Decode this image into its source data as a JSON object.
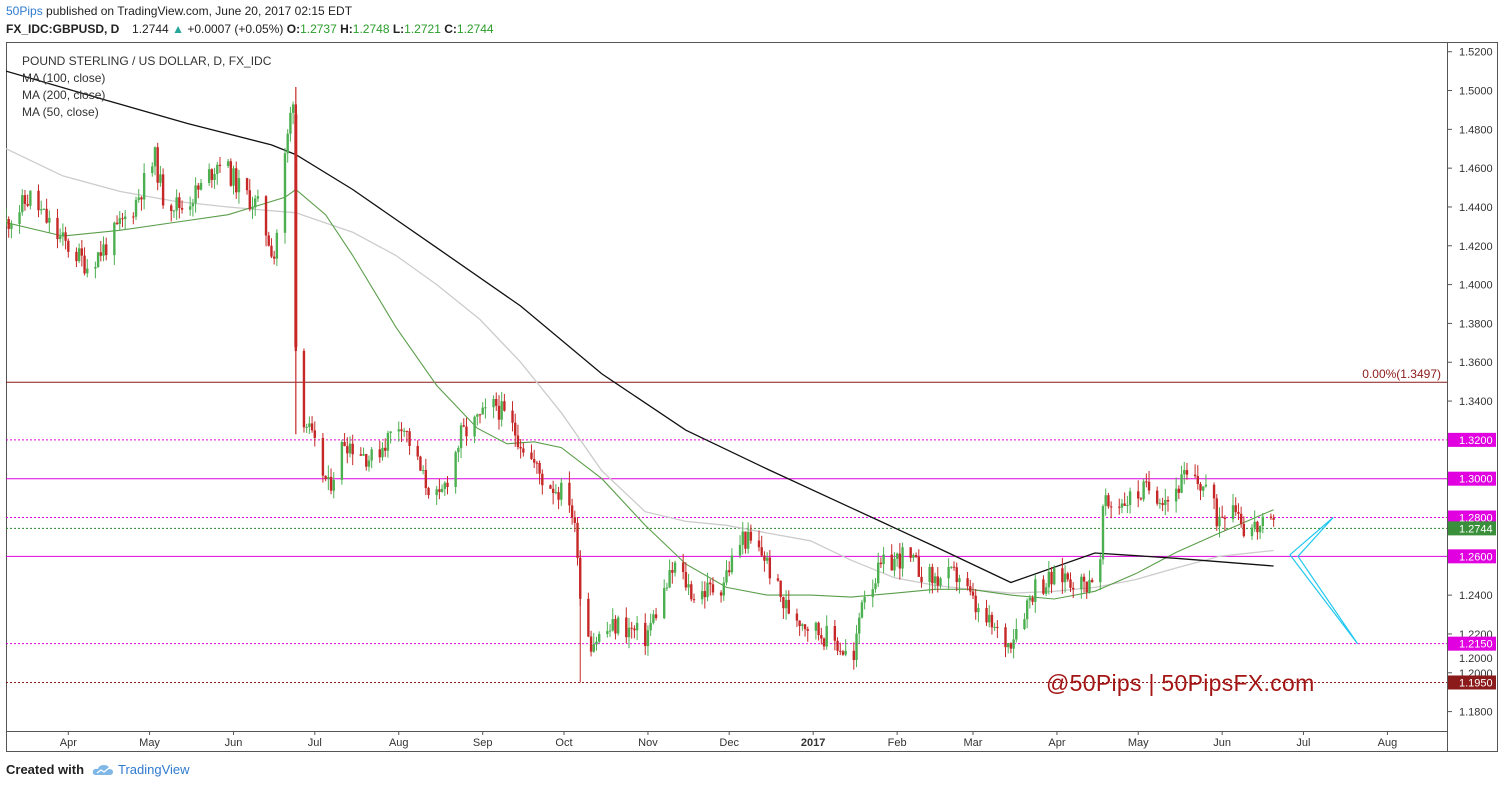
{
  "header": {
    "author": "50Pips",
    "published_text": "published on TradingView.com, June 20, 2017 02:15 EDT",
    "symbol": "FX_IDC:GBPUSD, D",
    "last": "1.2744",
    "change_arrow": "▲",
    "change": "+0.0007 (+0.05%)",
    "o_label": "O:",
    "o_value": "1.2737",
    "h_label": "H:",
    "h_value": "1.2748",
    "l_label": "L:",
    "l_value": "1.2721",
    "c_label": "C:",
    "c_value": "1.2744"
  },
  "legend": {
    "title": "POUND STERLING / US DOLLAR, D, FX_IDC",
    "ma100": "MA (100, close)",
    "ma200": "MA (200, close)",
    "ma50": "MA (50, close)"
  },
  "watermark": "@50Pips | 50PipsFX.com",
  "footer": {
    "created_with": "Created with",
    "brand": "TradingView"
  },
  "colors": {
    "up_candle": "#4caf50",
    "down_candle": "#c62828",
    "ma50": "#5a9e4a",
    "ma100": "#cccccc",
    "ma200": "#111111",
    "magenta": "#e000e0",
    "fib": "#8b1a1a",
    "projection": "#22c8f0"
  },
  "chart_data": {
    "type": "candlestick",
    "ylim": [
      1.17,
      1.525
    ],
    "y_ticks": [
      "1.5200",
      "1.5000",
      "1.4800",
      "1.4600",
      "1.4400",
      "1.4200",
      "1.4000",
      "1.3800",
      "1.3600",
      "1.3400",
      "1.3200",
      "1.3000",
      "1.2800",
      "1.2600",
      "1.2400",
      "1.2200",
      "1.2000",
      "1.1800"
    ],
    "x_labels": [
      {
        "date": "2016-04-01",
        "label": "Apr"
      },
      {
        "date": "2016-05-01",
        "label": "May"
      },
      {
        "date": "2016-06-01",
        "label": "Jun"
      },
      {
        "date": "2016-07-01",
        "label": "Jul"
      },
      {
        "date": "2016-08-01",
        "label": "Aug"
      },
      {
        "date": "2016-09-01",
        "label": "Sep"
      },
      {
        "date": "2016-10-01",
        "label": "Oct"
      },
      {
        "date": "2016-11-01",
        "label": "Nov"
      },
      {
        "date": "2016-12-01",
        "label": "Dec"
      },
      {
        "date": "2017-01-01",
        "label": "2017",
        "bold": true
      },
      {
        "date": "2017-02-01",
        "label": "Feb"
      },
      {
        "date": "2017-03-01",
        "label": "Mar"
      },
      {
        "date": "2017-04-01",
        "label": "Apr"
      },
      {
        "date": "2017-05-01",
        "label": "May"
      },
      {
        "date": "2017-06-01",
        "label": "Jun"
      },
      {
        "date": "2017-07-01",
        "label": "Jul"
      },
      {
        "date": "2017-08-01",
        "label": "Aug"
      }
    ],
    "x_range": [
      "2016-03-09",
      "2017-08-23"
    ],
    "price_path": [
      [
        "2016-03-09",
        1.432
      ],
      [
        "2016-03-18",
        1.445
      ],
      [
        "2016-03-28",
        1.425
      ],
      [
        "2016-04-08",
        1.41
      ],
      [
        "2016-04-15",
        1.42
      ],
      [
        "2016-04-25",
        1.44
      ],
      [
        "2016-05-03",
        1.465
      ],
      [
        "2016-05-06",
        1.445
      ],
      [
        "2016-05-13",
        1.44
      ],
      [
        "2016-05-20",
        1.45
      ],
      [
        "2016-05-27",
        1.465
      ],
      [
        "2016-06-03",
        1.45
      ],
      [
        "2016-06-10",
        1.44
      ],
      [
        "2016-06-16",
        1.415
      ],
      [
        "2016-06-20",
        1.465
      ],
      [
        "2016-06-23",
        1.498
      ],
      [
        "2016-06-24",
        1.367
      ],
      [
        "2016-06-27",
        1.332
      ],
      [
        "2016-07-06",
        1.295
      ],
      [
        "2016-07-12",
        1.32
      ],
      [
        "2016-07-22",
        1.31
      ],
      [
        "2016-08-02",
        1.33
      ],
      [
        "2016-08-10",
        1.3
      ],
      [
        "2016-08-16",
        1.288
      ],
      [
        "2016-08-24",
        1.322
      ],
      [
        "2016-09-06",
        1.338
      ],
      [
        "2016-09-14",
        1.322
      ],
      [
        "2016-09-23",
        1.3
      ],
      [
        "2016-10-03",
        1.29
      ],
      [
        "2016-10-06",
        1.265
      ],
      [
        "2016-10-07",
        1.24
      ],
      [
        "2016-10-11",
        1.216
      ],
      [
        "2016-10-21",
        1.225
      ],
      [
        "2016-10-31",
        1.218
      ],
      [
        "2016-11-11",
        1.255
      ],
      [
        "2016-11-18",
        1.24
      ],
      [
        "2016-11-28",
        1.245
      ],
      [
        "2016-12-06",
        1.27
      ],
      [
        "2016-12-14",
        1.26
      ],
      [
        "2016-12-21",
        1.235
      ],
      [
        "2016-12-30",
        1.225
      ],
      [
        "2017-01-10",
        1.215
      ],
      [
        "2017-01-16",
        1.205
      ],
      [
        "2017-01-19",
        1.24
      ],
      [
        "2017-01-27",
        1.255
      ],
      [
        "2017-02-03",
        1.26
      ],
      [
        "2017-02-14",
        1.248
      ],
      [
        "2017-02-24",
        1.25
      ],
      [
        "2017-03-03",
        1.23
      ],
      [
        "2017-03-14",
        1.215
      ],
      [
        "2017-03-24",
        1.245
      ],
      [
        "2017-04-04",
        1.25
      ],
      [
        "2017-04-11",
        1.245
      ],
      [
        "2017-04-17",
        1.255
      ],
      [
        "2017-04-18",
        1.285
      ],
      [
        "2017-04-28",
        1.29
      ],
      [
        "2017-05-05",
        1.295
      ],
      [
        "2017-05-12",
        1.29
      ],
      [
        "2017-05-18",
        1.3
      ],
      [
        "2017-05-26",
        1.296
      ],
      [
        "2017-05-30",
        1.28
      ],
      [
        "2017-06-05",
        1.29
      ],
      [
        "2017-06-08",
        1.28
      ],
      [
        "2017-06-09",
        1.275
      ],
      [
        "2017-06-14",
        1.275
      ],
      [
        "2017-06-20",
        1.2744
      ]
    ],
    "ma50": [
      [
        "2016-03-09",
        1.432
      ],
      [
        "2016-03-30",
        1.425
      ],
      [
        "2016-04-20",
        1.428
      ],
      [
        "2016-05-10",
        1.432
      ],
      [
        "2016-05-30",
        1.436
      ],
      [
        "2016-06-20",
        1.445
      ],
      [
        "2016-06-24",
        1.449
      ],
      [
        "2016-07-05",
        1.436
      ],
      [
        "2016-07-15",
        1.415
      ],
      [
        "2016-07-31",
        1.378
      ],
      [
        "2016-08-15",
        1.348
      ],
      [
        "2016-08-30",
        1.326
      ],
      [
        "2016-09-10",
        1.318
      ],
      [
        "2016-09-20",
        1.319
      ],
      [
        "2016-09-30",
        1.316
      ],
      [
        "2016-10-15",
        1.3
      ],
      [
        "2016-10-31",
        1.276
      ],
      [
        "2016-11-15",
        1.256
      ],
      [
        "2016-11-30",
        1.244
      ],
      [
        "2016-12-15",
        1.24
      ],
      [
        "2016-12-31",
        1.24
      ],
      [
        "2017-01-15",
        1.239
      ],
      [
        "2017-01-31",
        1.241
      ],
      [
        "2017-02-15",
        1.243
      ],
      [
        "2017-02-28",
        1.243
      ],
      [
        "2017-03-15",
        1.24
      ],
      [
        "2017-03-31",
        1.238
      ],
      [
        "2017-04-15",
        1.242
      ],
      [
        "2017-04-30",
        1.251
      ],
      [
        "2017-05-15",
        1.262
      ],
      [
        "2017-05-31",
        1.272
      ],
      [
        "2017-06-10",
        1.278
      ],
      [
        "2017-06-20",
        1.284
      ]
    ],
    "ma100": [
      [
        "2016-03-09",
        1.47
      ],
      [
        "2016-03-30",
        1.456
      ],
      [
        "2016-04-20",
        1.448
      ],
      [
        "2016-05-10",
        1.443
      ],
      [
        "2016-05-30",
        1.44
      ],
      [
        "2016-06-24",
        1.437
      ],
      [
        "2016-07-15",
        1.427
      ],
      [
        "2016-07-31",
        1.415
      ],
      [
        "2016-08-15",
        1.4
      ],
      [
        "2016-08-31",
        1.382
      ],
      [
        "2016-09-15",
        1.36
      ],
      [
        "2016-09-30",
        1.334
      ],
      [
        "2016-10-15",
        1.304
      ],
      [
        "2016-10-31",
        1.283
      ],
      [
        "2016-11-15",
        1.278
      ],
      [
        "2016-11-30",
        1.276
      ],
      [
        "2016-12-15",
        1.272
      ],
      [
        "2016-12-31",
        1.268
      ],
      [
        "2017-01-15",
        1.258
      ],
      [
        "2017-01-31",
        1.249
      ],
      [
        "2017-02-15",
        1.245
      ],
      [
        "2017-02-28",
        1.243
      ],
      [
        "2017-03-15",
        1.241
      ],
      [
        "2017-03-31",
        1.242
      ],
      [
        "2017-04-15",
        1.244
      ],
      [
        "2017-04-30",
        1.248
      ],
      [
        "2017-05-15",
        1.254
      ],
      [
        "2017-05-31",
        1.26
      ],
      [
        "2017-06-20",
        1.263
      ]
    ],
    "ma200": [
      [
        "2016-03-09",
        1.51
      ],
      [
        "2016-04-15",
        1.495
      ],
      [
        "2016-05-15",
        1.483
      ],
      [
        "2016-06-15",
        1.472
      ],
      [
        "2016-06-24",
        1.467
      ],
      [
        "2016-07-15",
        1.449
      ],
      [
        "2016-08-15",
        1.419
      ],
      [
        "2016-09-15",
        1.389
      ],
      [
        "2016-10-15",
        1.354
      ],
      [
        "2016-11-15",
        1.325
      ],
      [
        "2016-12-15",
        1.305
      ],
      [
        "2017-01-15",
        1.285
      ],
      [
        "2017-02-15",
        1.265
      ],
      [
        "2017-03-15",
        1.2465
      ],
      [
        "2017-04-15",
        1.2617
      ],
      [
        "2017-05-15",
        1.259
      ],
      [
        "2017-06-20",
        1.255
      ]
    ],
    "levels": [
      {
        "price": 1.3497,
        "style": "solid",
        "color": "#8b1a1a",
        "label": "0.00%(1.3497)",
        "tag": ""
      },
      {
        "price": 1.32,
        "style": "dotted",
        "color": "#e000e0",
        "label": "",
        "tag": "1.3200"
      },
      {
        "price": 1.3,
        "style": "solid",
        "color": "#e000e0",
        "label": "",
        "tag": "1.3000"
      },
      {
        "price": 1.28,
        "style": "dotted",
        "color": "#e000e0",
        "label": "",
        "tag": "1.2800"
      },
      {
        "price": 1.26,
        "style": "solid",
        "color": "#e000e0",
        "label": "",
        "tag": "1.2600"
      },
      {
        "price": 1.215,
        "style": "dotted",
        "color": "#e000e0",
        "label": "",
        "tag": "1.2150"
      },
      {
        "price": 1.195,
        "style": "dotted",
        "color": "#8b1a1a",
        "label": "",
        "tag": "1.1950"
      }
    ],
    "current_price": {
      "value": 1.2744,
      "label": "1.2744"
    },
    "extra_tags": [
      {
        "label": "1.2000",
        "price": 1.2075
      }
    ],
    "projection": [
      [
        "2017-06-26",
        1.2608
      ],
      [
        "2017-07-12",
        1.28
      ],
      [
        "2017-06-29",
        1.26
      ],
      [
        "2017-07-21",
        1.215
      ],
      [
        "2017-06-26",
        1.2608
      ]
    ]
  }
}
